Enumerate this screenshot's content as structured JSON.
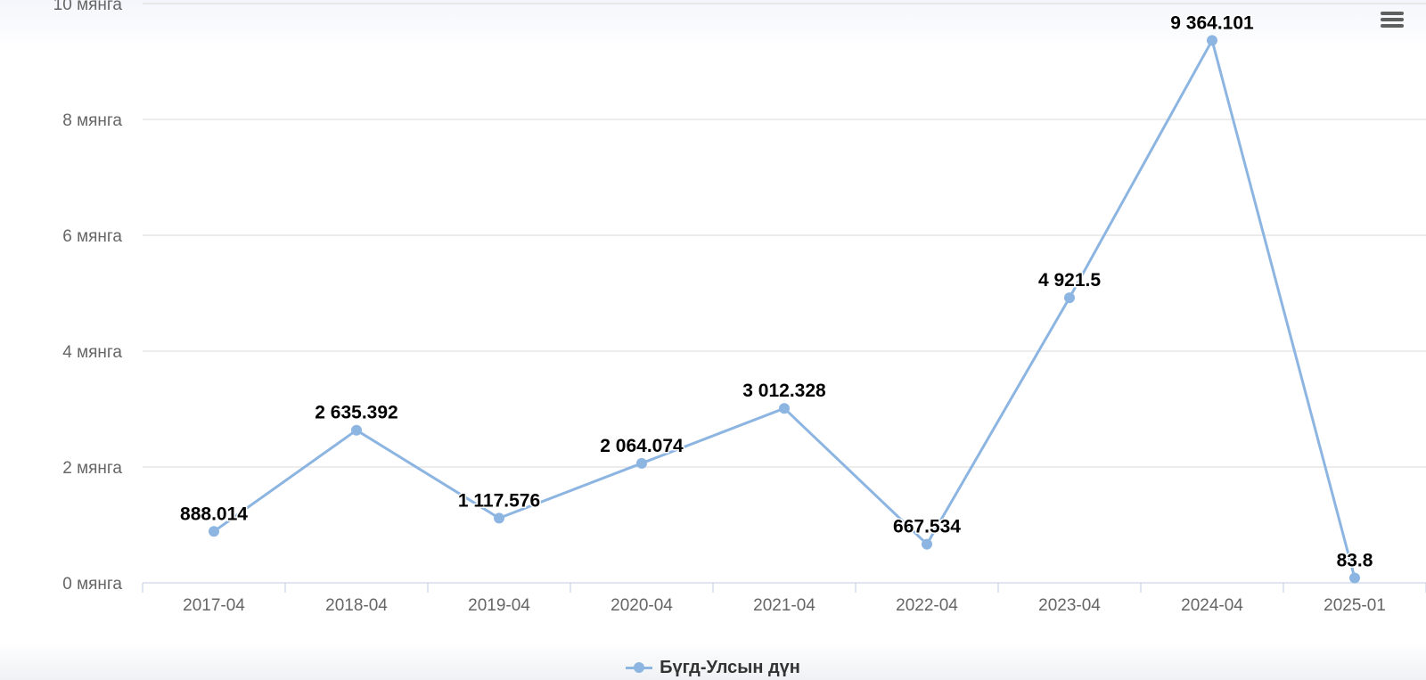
{
  "chart_data": {
    "type": "line",
    "categories": [
      "2017-04",
      "2018-04",
      "2019-04",
      "2020-04",
      "2021-04",
      "2022-04",
      "2023-04",
      "2024-04",
      "2025-01"
    ],
    "series": [
      {
        "name": "Бүгд-Улсын дүн",
        "color": "#8db5e2",
        "values": [
          888.014,
          2635.392,
          1117.576,
          2064.074,
          3012.328,
          667.534,
          4921.5,
          9364.101,
          83.8
        ],
        "labels": [
          "888.014",
          "2 635.392",
          "1 117.576",
          "2 064.074",
          "3 012.328",
          "667.534",
          "4 921.5",
          "9 364.101",
          "83.8"
        ]
      }
    ],
    "y_ticks": [
      {
        "value": 0,
        "label": "0 мянга"
      },
      {
        "value": 2000,
        "label": "2 мянга"
      },
      {
        "value": 4000,
        "label": "4 мянга"
      },
      {
        "value": 6000,
        "label": "6 мянга"
      },
      {
        "value": 8000,
        "label": "8 мянга"
      },
      {
        "value": 10000,
        "label": "10 мянга"
      }
    ],
    "ylim": [
      0,
      10000
    ],
    "grid": true,
    "legend_position": "bottom-center"
  },
  "legend": {
    "label": "Бүгд-Улсын дүн"
  },
  "menu": {
    "icon": "hamburger-menu-icon"
  }
}
